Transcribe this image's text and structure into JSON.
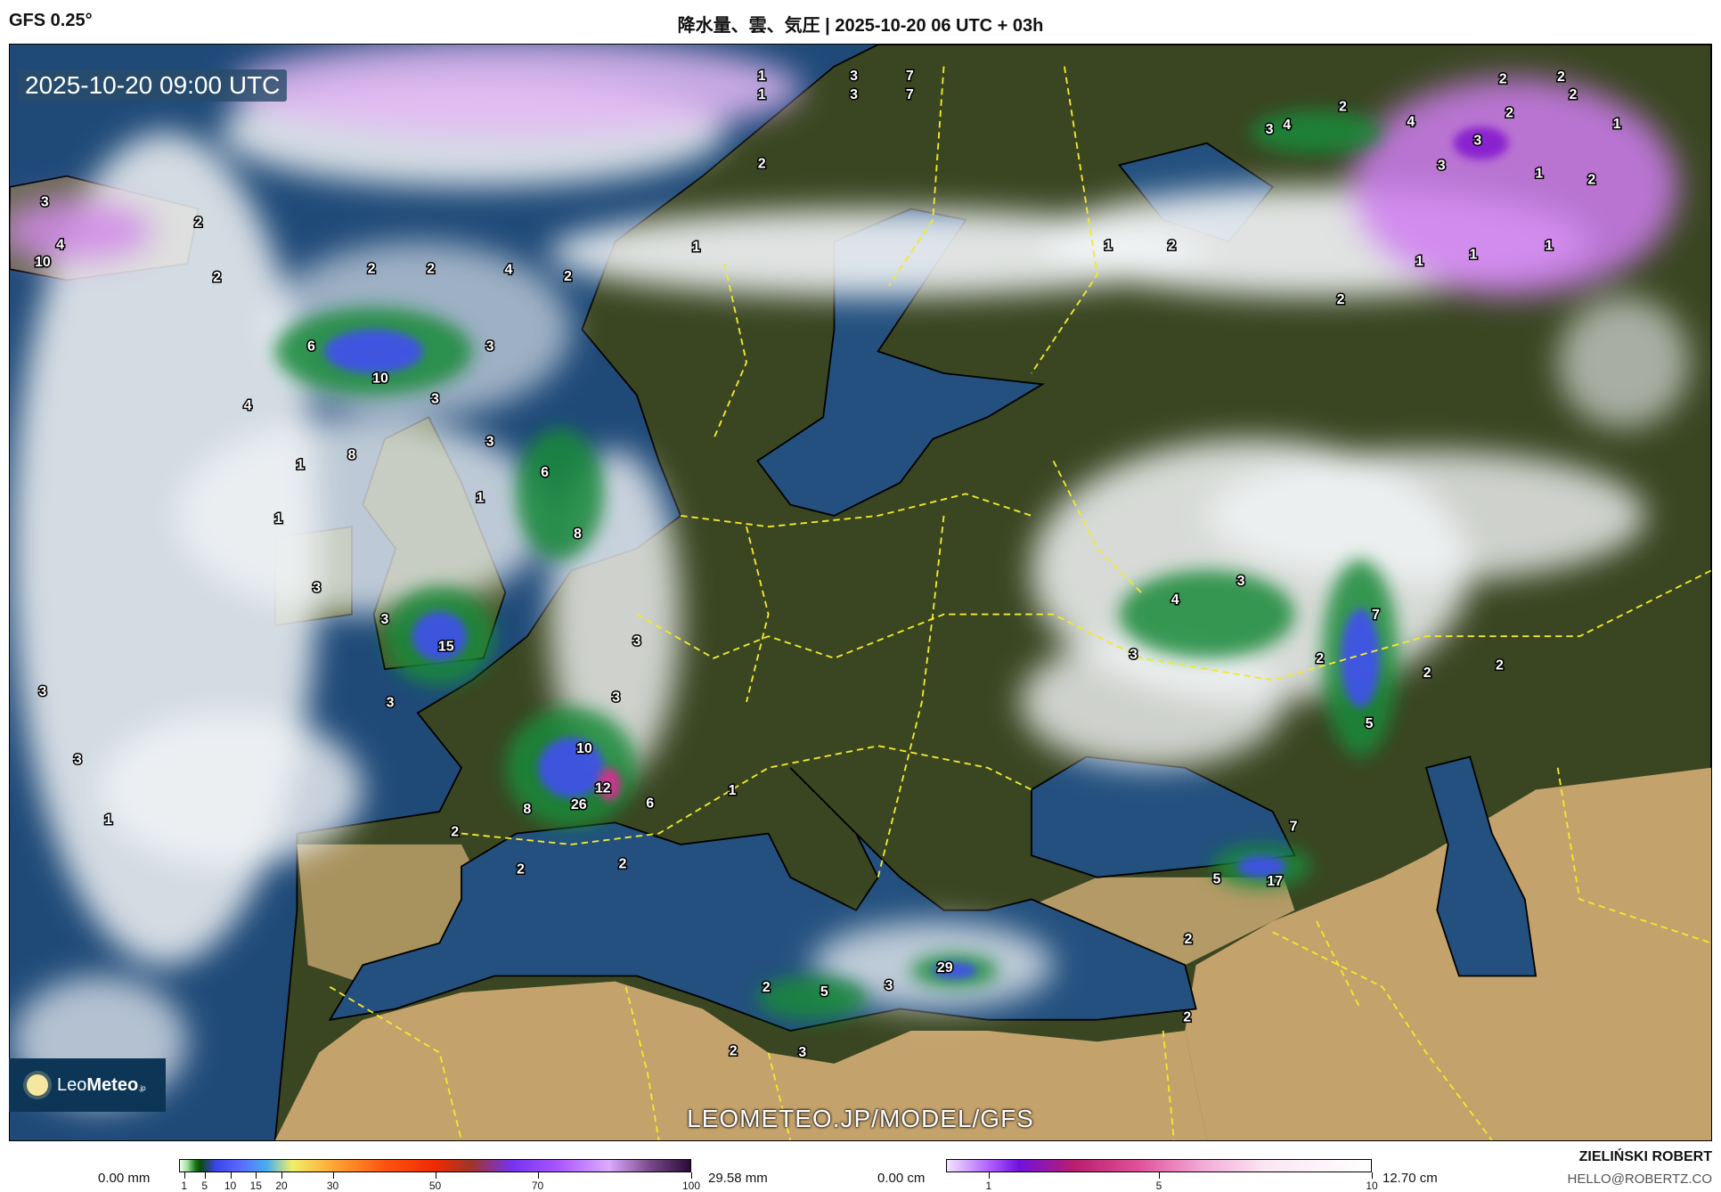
{
  "header": {
    "model": "GFS 0.25°",
    "title": "降水量、雲、気圧 | 2025-10-20 06 UTC + 03h"
  },
  "map": {
    "valid_time": "2025-10-20 09:00 UTC",
    "watermark": "LEOMETEO.JP/MODEL/GFS",
    "logo": {
      "name_light": "Leo",
      "name_bold": "Meteo",
      "suffix": ".jp"
    },
    "precip_labels": [
      "3",
      "4",
      "10",
      "2",
      "2",
      "2",
      "2",
      "4",
      "2",
      "6",
      "10",
      "3",
      "3",
      "4",
      "3",
      "8",
      "1",
      "6",
      "1",
      "1",
      "8",
      "3",
      "3",
      "15",
      "3",
      "3",
      "3",
      "3",
      "3",
      "1",
      "10",
      "12",
      "26",
      "8",
      "6",
      "1",
      "2",
      "2",
      "2",
      "1",
      "1",
      "3",
      "3",
      "7",
      "7",
      "2",
      "1",
      "3",
      "4",
      "2",
      "4",
      "2",
      "2",
      "2",
      "2",
      "1",
      "3",
      "3",
      "1",
      "2",
      "1",
      "2",
      "1",
      "1",
      "1",
      "2",
      "3",
      "4",
      "7",
      "3",
      "2",
      "2",
      "2",
      "5",
      "7",
      "5",
      "17",
      "2",
      "29",
      "3",
      "5",
      "2",
      "2",
      "3",
      "2"
    ],
    "colors": {
      "ocean": "#1f4a78",
      "land": "#3a4622",
      "desert": "#c4a26c",
      "border": "#f2e92b",
      "coast": "#000000"
    }
  },
  "legend": {
    "precip": {
      "min_label": "0.00 mm",
      "max_label": "29.58 mm",
      "ticks": [
        "1",
        "5",
        "10",
        "15",
        "20",
        "30",
        "50",
        "70",
        "100"
      ],
      "tick_values": [
        1,
        5,
        10,
        15,
        20,
        30,
        50,
        70,
        100
      ]
    },
    "snow": {
      "min_label": "0.00 cm",
      "max_label": "12.70 cm",
      "ticks": [
        "1",
        "5",
        "10"
      ],
      "tick_values": [
        1,
        5,
        10
      ]
    }
  },
  "footer": {
    "author": "ZIELIŃSKI ROBERT",
    "email": "HELLO@ROBERTZ.CO"
  }
}
